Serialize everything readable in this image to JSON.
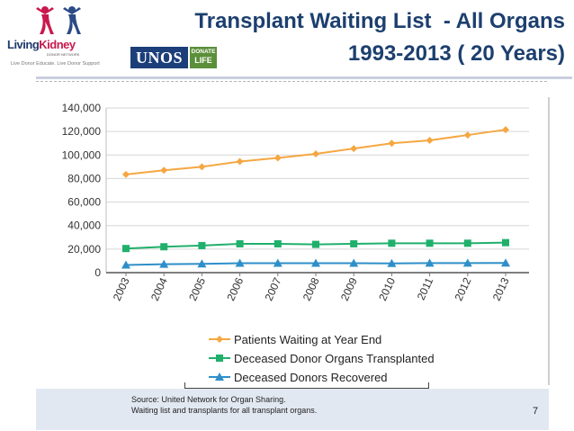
{
  "header": {
    "title_line1": "Transplant Waiting List  - All Organs",
    "title_line2": "1993-2013 ( 20 Years)"
  },
  "logo": {
    "word_part1": "Living",
    "word_part2": "Kidney",
    "society": "DONOR NETWORK",
    "tagline": "Live Donor Educate. Live Donor Support"
  },
  "unos": {
    "name": "UNOS",
    "badge_line1": "DONATE",
    "badge_line2": "LIFE"
  },
  "footer": {
    "source_line1": "Source: United Network for Organ Sharing.",
    "source_line2": "Waiting list and transplants for all transplant organs.",
    "page_number": "7"
  },
  "chart_data": {
    "type": "line",
    "title": "",
    "xlabel": "",
    "ylabel": "",
    "x": [
      "2003",
      "2004",
      "2005",
      "2006",
      "2007",
      "2008",
      "2009",
      "2010",
      "2011",
      "2012",
      "2013"
    ],
    "ylim": [
      0,
      140000
    ],
    "yticks": [
      "0",
      "20,000",
      "40,000",
      "60,000",
      "80,000",
      "100,000",
      "120,000",
      "140,000"
    ],
    "grid": true,
    "legend_position": "bottom",
    "series": [
      {
        "name": "Patients Waiting at Year End",
        "color": "#f5a742",
        "marker": "diamond",
        "values": [
          83500,
          87000,
          90000,
          94500,
          97500,
          101000,
          105500,
          110000,
          112500,
          117000,
          121500
        ]
      },
      {
        "name": "Deceased Donor Organs Transplanted",
        "color": "#20b06b",
        "marker": "square",
        "values": [
          20500,
          22000,
          23000,
          24500,
          24500,
          24000,
          24500,
          25000,
          25000,
          25000,
          25500
        ]
      },
      {
        "name": "Deceased Donors Recovered",
        "color": "#2e8fc9",
        "marker": "triangle",
        "values": [
          6500,
          7200,
          7500,
          8000,
          8000,
          8000,
          8000,
          7800,
          8100,
          8100,
          8200
        ]
      }
    ]
  }
}
